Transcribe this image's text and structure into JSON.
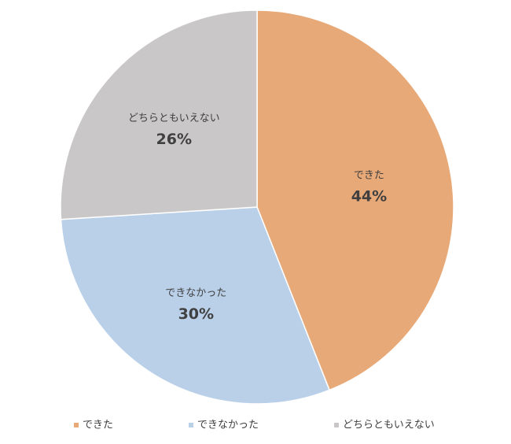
{
  "chart_data": {
    "type": "pie",
    "categories": [
      "できた",
      "できなかった",
      "どちらともいえない"
    ],
    "values": [
      44,
      30,
      26
    ],
    "value_labels": [
      "44%",
      "30%",
      "26%"
    ],
    "colors": [
      "#e8a978",
      "#bad0e9",
      "#c9c7c8"
    ],
    "legend": "bottom"
  }
}
